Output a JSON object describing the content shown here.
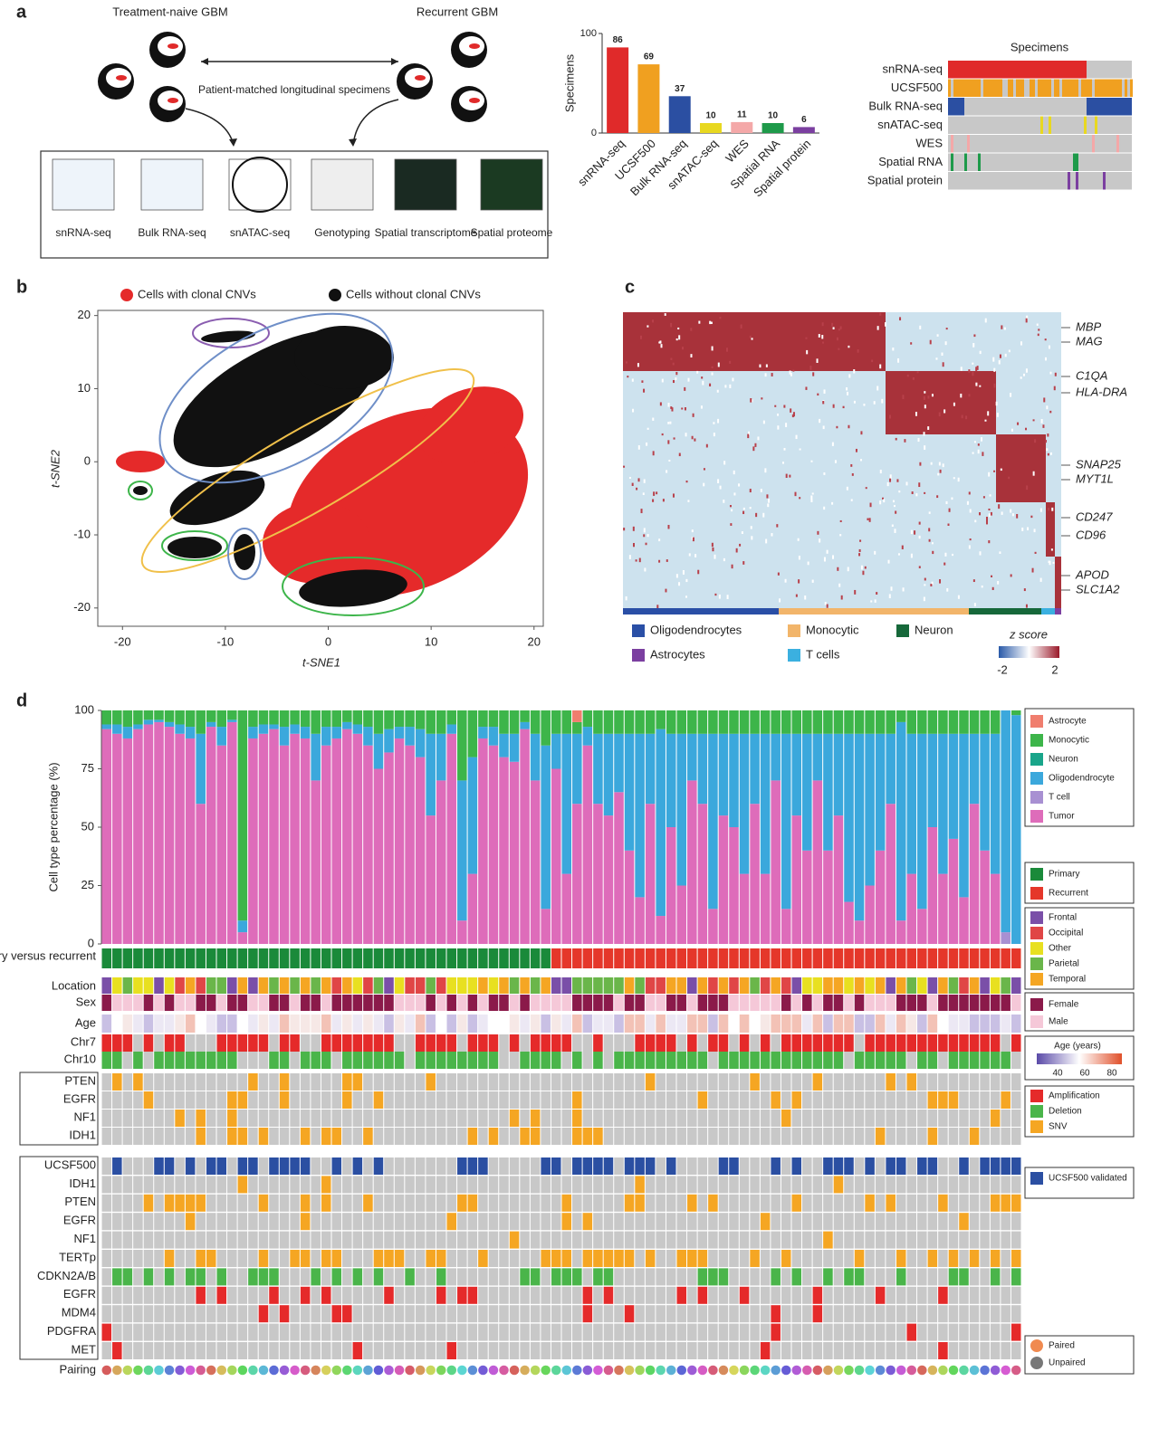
{
  "panel_labels": [
    "a",
    "b",
    "c",
    "d"
  ],
  "panel_a": {
    "naive_title": "Treatment-naive GBM",
    "recurrent_title": "Recurrent GBM",
    "arrow_label": "Patient-matched longitudinal specimens",
    "assays": [
      "snRNA-seq",
      "Bulk RNA-seq",
      "snATAC-seq",
      "Genotyping",
      "Spatial transcriptome",
      "Spatial proteome"
    ],
    "heatmap_title": "Specimens",
    "heatmap_rows": [
      "snRNA-seq",
      "UCSF500",
      "Bulk RNA-seq",
      "snATAC-seq",
      "WES",
      "Spatial RNA",
      "Spatial protein"
    ]
  },
  "chart_data": [
    {
      "type": "bar",
      "ylabel": "Specimens",
      "categories": [
        "snRNA-seq",
        "UCSF500",
        "Bulk RNA-seq",
        "snATAC-seq",
        "WES",
        "Spatial RNA",
        "Spatial protein"
      ],
      "values": [
        86,
        69,
        37,
        10,
        11,
        10,
        6
      ],
      "colors": [
        "#e02a2a",
        "#f0a020",
        "#2b4fa2",
        "#e8d820",
        "#f4a8a8",
        "#1e9a4a",
        "#7b3fa0"
      ],
      "ylim": [
        0,
        100
      ],
      "yticks": [
        0,
        100
      ]
    },
    {
      "type": "scatter",
      "xlabel": "t-SNE1",
      "ylabel": "t-SNE2",
      "legend": [
        {
          "name": "Cells with clonal CNVs",
          "color": "#e52a2a"
        },
        {
          "name": "Cells without clonal CNVs",
          "color": "#111111"
        }
      ],
      "xlim": [
        -22.4,
        20.9
      ],
      "xticks": [
        -20,
        -10,
        0,
        10,
        20
      ],
      "ylim": [
        -22.5,
        20.7
      ],
      "yticks": [
        20,
        10,
        0,
        -10,
        -20
      ]
    },
    {
      "type": "stacked_bar",
      "ylabel": "Cell type percentage (%)",
      "ylim": [
        0,
        100
      ],
      "yticks": [
        0,
        25,
        50,
        75,
        100
      ],
      "series": [
        {
          "name": "Astrocyte",
          "color": "#f07e6e",
          "values": [
            0,
            0,
            0,
            0,
            0,
            0,
            0,
            0,
            0,
            0,
            0,
            0,
            0,
            0,
            0,
            0,
            0,
            0,
            0,
            0,
            0,
            0,
            0,
            0,
            0,
            0,
            0,
            0,
            0,
            0,
            0,
            0,
            0,
            0,
            0,
            0,
            0,
            0,
            0,
            0,
            0,
            0,
            0,
            0,
            0,
            5,
            0,
            0,
            0,
            0,
            0,
            0,
            0,
            0,
            0,
            0,
            0,
            0,
            0,
            0,
            0,
            0,
            0,
            0,
            0,
            0,
            0,
            0,
            0,
            0,
            0,
            0,
            0,
            0,
            0,
            0,
            0,
            0,
            0,
            0,
            0,
            0,
            0,
            0,
            0,
            0,
            0,
            0
          ]
        },
        {
          "name": "Monocytic",
          "color": "#3db54a",
          "values": [
            6,
            6,
            7,
            6,
            4,
            4,
            5,
            6,
            7,
            10,
            5,
            7,
            4,
            90,
            7,
            6,
            6,
            7,
            6,
            7,
            10,
            7,
            7,
            5,
            6,
            7,
            10,
            8,
            7,
            7,
            8,
            10,
            10,
            6,
            30,
            20,
            7,
            7,
            10,
            10,
            5,
            10,
            15,
            10,
            10,
            5,
            7,
            10,
            10,
            10,
            10,
            10,
            10,
            8,
            10,
            10,
            10,
            10,
            10,
            10,
            10,
            10,
            10,
            10,
            10,
            10,
            10,
            10,
            10,
            10,
            10,
            10,
            10,
            10,
            10,
            10,
            5,
            10,
            10,
            10,
            10,
            10,
            10,
            10,
            10,
            10,
            0,
            2
          ]
        },
        {
          "name": "Neuron",
          "color": "#19a58a",
          "values": [
            0,
            0,
            0,
            0,
            0,
            0,
            0,
            0,
            0,
            0,
            0,
            0,
            0,
            0,
            0,
            0,
            0,
            0,
            0,
            0,
            0,
            0,
            0,
            0,
            0,
            0,
            0,
            0,
            0,
            0,
            0,
            0,
            0,
            0,
            0,
            0,
            0,
            0,
            0,
            0,
            0,
            0,
            0,
            0,
            0,
            0,
            0,
            0,
            0,
            0,
            0,
            0,
            0,
            0,
            0,
            0,
            0,
            0,
            0,
            0,
            0,
            0,
            0,
            0,
            0,
            0,
            0,
            0,
            0,
            0,
            0,
            0,
            0,
            0,
            0,
            0,
            0,
            0,
            0,
            0,
            0,
            0,
            0,
            0,
            0,
            0,
            0,
            0
          ]
        },
        {
          "name": "Oligodendrocyte",
          "color": "#3ba8dc",
          "values": [
            2,
            4,
            5,
            2,
            2,
            1,
            2,
            4,
            5,
            30,
            2,
            8,
            1,
            5,
            5,
            4,
            2,
            8,
            4,
            5,
            20,
            8,
            5,
            3,
            4,
            8,
            15,
            10,
            5,
            8,
            12,
            35,
            20,
            4,
            60,
            50,
            5,
            8,
            10,
            12,
            3,
            20,
            70,
            15,
            60,
            30,
            8,
            30,
            35,
            25,
            50,
            70,
            30,
            80,
            40,
            65,
            20,
            30,
            75,
            35,
            40,
            60,
            30,
            60,
            20,
            75,
            35,
            50,
            20,
            50,
            35,
            72,
            80,
            65,
            50,
            30,
            85,
            60,
            75,
            40,
            60,
            45,
            70,
            30,
            50,
            60,
            95,
            98
          ]
        },
        {
          "name": "T cell",
          "color": "#a890d2",
          "values": [
            0,
            0,
            0,
            0,
            0,
            0,
            0,
            0,
            0,
            0,
            0,
            0,
            0,
            0,
            0,
            0,
            0,
            0,
            0,
            0,
            0,
            0,
            0,
            0,
            0,
            0,
            0,
            0,
            0,
            0,
            0,
            0,
            0,
            0,
            0,
            0,
            0,
            0,
            0,
            0,
            0,
            0,
            0,
            0,
            0,
            0,
            0,
            0,
            0,
            0,
            0,
            0,
            0,
            0,
            0,
            0,
            0,
            0,
            0,
            0,
            0,
            0,
            0,
            0,
            0,
            0,
            0,
            0,
            0,
            0,
            0,
            0,
            0,
            0,
            0,
            0,
            0,
            0,
            0,
            0,
            0,
            0,
            0,
            0,
            0,
            0,
            5,
            0
          ]
        },
        {
          "name": "Tumor",
          "color": "#de6cba",
          "values": [
            92,
            90,
            88,
            92,
            94,
            95,
            93,
            90,
            88,
            60,
            93,
            85,
            95,
            5,
            88,
            90,
            92,
            85,
            90,
            88,
            70,
            85,
            88,
            92,
            90,
            85,
            75,
            82,
            88,
            85,
            80,
            55,
            70,
            90,
            10,
            30,
            88,
            85,
            80,
            78,
            92,
            70,
            15,
            75,
            30,
            60,
            85,
            60,
            55,
            65,
            40,
            20,
            60,
            12,
            50,
            25,
            70,
            60,
            15,
            55,
            50,
            30,
            60,
            30,
            70,
            15,
            55,
            40,
            70,
            40,
            55,
            18,
            10,
            25,
            40,
            60,
            10,
            30,
            15,
            50,
            30,
            45,
            20,
            60,
            40,
            30,
            0,
            0
          ]
        }
      ]
    }
  ],
  "panel_c": {
    "genes": [
      "MBP",
      "MAG",
      "C1QA",
      "HLA-DRA",
      "SNAP25",
      "MYT1L",
      "CD247",
      "CD96",
      "APOD",
      "SLC1A2"
    ],
    "legend": [
      {
        "name": "Oligodendrocytes",
        "color": "#2a4fa6"
      },
      {
        "name": "Monocytic",
        "color": "#f2b56a"
      },
      {
        "name": "Neuron",
        "color": "#16683a"
      },
      {
        "name": "Astrocytes",
        "color": "#7b3fa0"
      },
      {
        "name": "T cells",
        "color": "#3bb0e0"
      }
    ],
    "zlabel": "z score",
    "zticks": [
      -2,
      2
    ]
  },
  "panel_d": {
    "track_labels": [
      "Primary versus recurrent",
      "Location",
      "Sex",
      "Age",
      "Chr7",
      "Chr10"
    ],
    "bulk_genes": [
      "PTEN",
      "EGFR",
      "NF1",
      "IDH1"
    ],
    "panel_genes": [
      "UCSF500",
      "IDH1",
      "PTEN",
      "EGFR",
      "NF1",
      "TERTp",
      "CDKN2A/B",
      "EGFR",
      "MDM4",
      "PDGFRA",
      "MET"
    ],
    "pairing_label": "Pairing",
    "status_legend": [
      {
        "name": "Primary",
        "color": "#1a8a3a"
      },
      {
        "name": "Recurrent",
        "color": "#e5372a"
      }
    ],
    "location_legend": [
      {
        "name": "Frontal",
        "color": "#7a4fa8"
      },
      {
        "name": "Occipital",
        "color": "#e04646"
      },
      {
        "name": "Other",
        "color": "#e8e020"
      },
      {
        "name": "Parietal",
        "color": "#6ab64a"
      },
      {
        "name": "Temporal",
        "color": "#f5a623"
      }
    ],
    "sex_legend": [
      {
        "name": "Female",
        "color": "#8b1a4a"
      },
      {
        "name": "Male",
        "color": "#f5c8d8"
      }
    ],
    "age_title": "Age (years)",
    "age_ticks": [
      40,
      60,
      80
    ],
    "alteration_legend": [
      {
        "name": "Amplification",
        "color": "#e52a2a"
      },
      {
        "name": "Deletion",
        "color": "#4ab54a"
      },
      {
        "name": "SNV",
        "color": "#f5a623"
      }
    ],
    "validated_legend": {
      "name": "UCSF500 validated",
      "color": "#2b4fa2"
    },
    "pairing_legend": [
      {
        "name": "Paired",
        "color": "#f08a50"
      },
      {
        "name": "Unpaired",
        "color": "#777777"
      }
    ]
  }
}
